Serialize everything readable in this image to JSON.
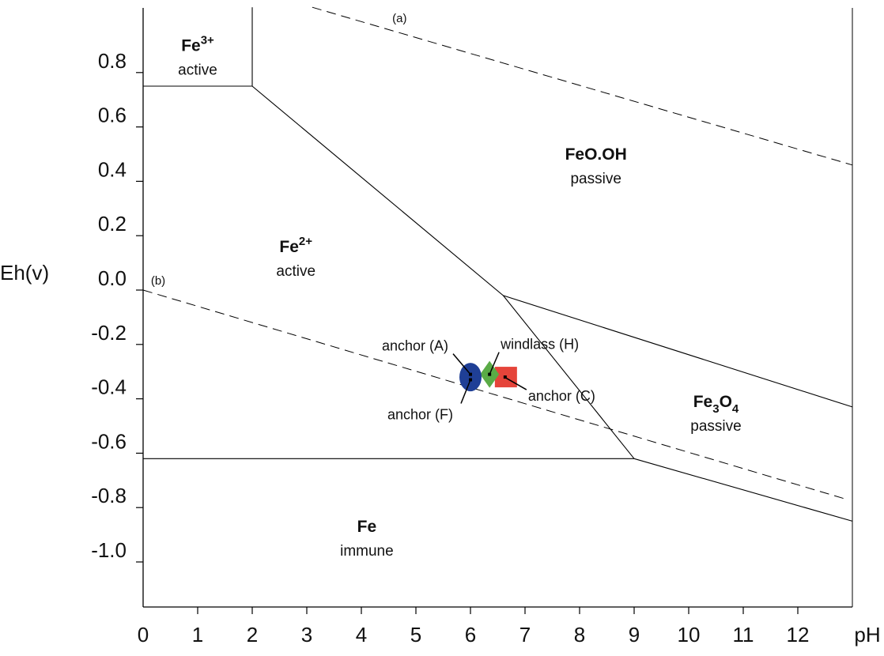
{
  "chart_data": {
    "type": "pourbaix-diagram",
    "xlabel": "pH",
    "ylabel": "Eh(v)",
    "xlim": [
      0,
      13
    ],
    "ylim": [
      -1.2,
      1.05
    ],
    "x_ticks": [
      0,
      1,
      2,
      3,
      4,
      5,
      6,
      7,
      8,
      9,
      10,
      11,
      12
    ],
    "y_ticks": [
      0.8,
      0.6,
      0.4,
      0.2,
      0.0,
      -0.2,
      -0.4,
      -0.6,
      -0.8,
      -1.0
    ],
    "y_tick_labels": [
      "0.8",
      "0.6",
      "0.4",
      "0.2",
      "0.0",
      "-0.2",
      "-0.4",
      "-0.6",
      "-0.8",
      "-1.0"
    ],
    "x_tick_labels": [
      "0",
      "1",
      "2",
      "3",
      "4",
      "5",
      "6",
      "7",
      "8",
      "9",
      "10",
      "11",
      "12"
    ],
    "boundaries": [
      {
        "points": [
          [
            0,
            0.75
          ],
          [
            2,
            0.75
          ]
        ]
      },
      {
        "points": [
          [
            2,
            0.75
          ],
          [
            2,
            1.04
          ]
        ]
      },
      {
        "points": [
          [
            2,
            0.75
          ],
          [
            6.6,
            -0.02
          ]
        ]
      },
      {
        "points": [
          [
            6.6,
            -0.02
          ],
          [
            9.0,
            -0.62
          ]
        ]
      },
      {
        "points": [
          [
            6.6,
            -0.02
          ],
          [
            13,
            -0.43
          ]
        ]
      },
      {
        "points": [
          [
            0,
            -0.62
          ],
          [
            9.0,
            -0.62
          ]
        ]
      },
      {
        "points": [
          [
            9.0,
            -0.62
          ],
          [
            13,
            -0.85
          ]
        ]
      }
    ],
    "dashed_lines": [
      {
        "label": "(a)",
        "points": [
          [
            3.1,
            1.04
          ],
          [
            13,
            0.46
          ]
        ]
      },
      {
        "label": "(b)",
        "points": [
          [
            0,
            0.0
          ],
          [
            12.9,
            -0.77
          ]
        ]
      }
    ],
    "regions": [
      {
        "name": "Fe",
        "sup": "3+",
        "state": "active",
        "x": 1.0,
        "y": 0.88
      },
      {
        "name": "FeO.OH",
        "state": "passive",
        "x": 8.3,
        "y": 0.48
      },
      {
        "name": "Fe",
        "sup": "2+",
        "state": "active",
        "x": 2.8,
        "y": 0.14
      },
      {
        "name": "Fe3O4",
        "state": "passive",
        "x": 10.5,
        "y": -0.43
      },
      {
        "name": "Fe",
        "state": "immune",
        "x": 4.1,
        "y": -0.89
      }
    ],
    "points": [
      {
        "label": "anchor (A)",
        "x": 6.0,
        "y": -0.31,
        "shape": "ellipse",
        "color": "#1f3f96"
      },
      {
        "label": "anchor (F)",
        "x": 6.0,
        "y": -0.33,
        "shape": "ellipse",
        "color": "#1f3f96"
      },
      {
        "label": "windlass (H)",
        "x": 6.35,
        "y": -0.31,
        "shape": "diamond",
        "color": "#5aab46"
      },
      {
        "label": "anchor (C)",
        "x": 6.65,
        "y": -0.32,
        "shape": "square",
        "color": "#e5443a"
      }
    ],
    "grid": false
  }
}
